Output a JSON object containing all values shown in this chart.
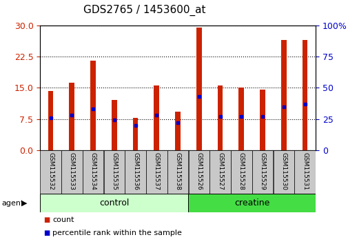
{
  "title": "GDS2765 / 1453600_at",
  "samples": [
    "GSM115532",
    "GSM115533",
    "GSM115534",
    "GSM115535",
    "GSM115536",
    "GSM115537",
    "GSM115538",
    "GSM115526",
    "GSM115527",
    "GSM115528",
    "GSM115529",
    "GSM115530",
    "GSM115531"
  ],
  "counts": [
    14.2,
    16.2,
    21.5,
    12.0,
    7.8,
    15.5,
    9.2,
    29.5,
    15.5,
    15.0,
    14.5,
    26.5,
    26.5
  ],
  "percentiles": [
    26,
    28,
    33,
    24,
    20,
    28,
    22,
    43,
    27,
    27,
    27,
    35,
    37
  ],
  "bar_color": "#cc2200",
  "percentile_color": "#0000cc",
  "ylim_left": [
    0,
    30
  ],
  "ylim_right": [
    0,
    100
  ],
  "yticks_left": [
    0,
    7.5,
    15,
    22.5,
    30
  ],
  "yticks_right": [
    0,
    25,
    50,
    75,
    100
  ],
  "groups": [
    {
      "label": "control",
      "start": 0,
      "end": 7,
      "color": "#ccffcc"
    },
    {
      "label": "creatine",
      "start": 7,
      "end": 13,
      "color": "#44dd44"
    }
  ],
  "agent_label": "agent",
  "legend_count": "count",
  "legend_percentile": "percentile rank within the sample",
  "grid_color": "#000000",
  "bar_width": 0.25,
  "tick_label_color_left": "#cc2200",
  "tick_label_color_right": "#0000cc",
  "title_fontsize": 11,
  "axis_fontsize": 8,
  "xtick_fontsize": 6.5,
  "group_fontsize": 9,
  "legend_fontsize": 8
}
